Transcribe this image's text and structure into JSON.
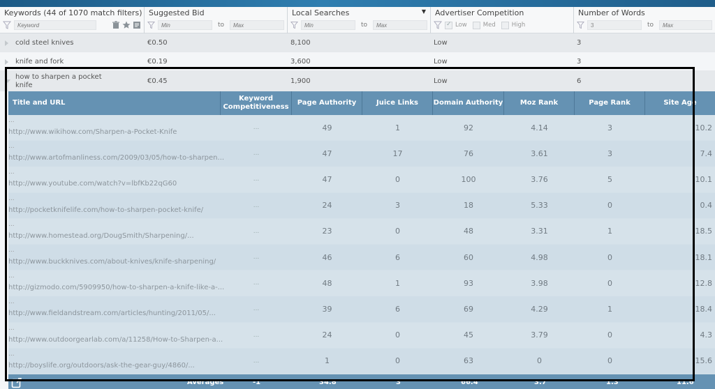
{
  "filters": {
    "keywords": {
      "title": "Keywords (44 of 1070 match filters)",
      "placeholder": "Keyword"
    },
    "suggested_bid": {
      "title": "Suggested Bid",
      "min_placeholder": "Min",
      "to": "to",
      "max_placeholder": "Max"
    },
    "local_searches": {
      "title": "Local Searches",
      "min_placeholder": "Min",
      "to": "to",
      "max_placeholder": "Max",
      "sort": "▼"
    },
    "advertiser_competition": {
      "title": "Advertiser Competition",
      "options": [
        {
          "label": "Low",
          "checked": true
        },
        {
          "label": "Med",
          "checked": false
        },
        {
          "label": "High",
          "checked": false
        }
      ]
    },
    "number_of_words": {
      "title": "Number of Words",
      "min_value": "3",
      "to": "to",
      "max_placeholder": "Max"
    }
  },
  "keywords": [
    {
      "keyword": "cold steel knives",
      "bid": "€0.50",
      "searches": "8,100",
      "competition": "Low",
      "words": "3",
      "expanded": false
    },
    {
      "keyword": "knife and fork",
      "bid": "€0.19",
      "searches": "3,600",
      "competition": "Low",
      "words": "3",
      "expanded": false
    },
    {
      "keyword": "how to sharpen a pocket knife",
      "bid": "€0.45",
      "searches": "1,900",
      "competition": "Low",
      "words": "6",
      "expanded": true
    }
  ],
  "detail": {
    "headers": [
      "Title and URL",
      "Keyword Competitiveness",
      "Page Authority",
      "Juice Links",
      "Domain Authority",
      "Moz Rank",
      "Page Rank",
      "Site Age"
    ],
    "rows": [
      {
        "title": "...",
        "url": "http://www.wikihow.com/Sharpen-a-Pocket-Knife",
        "kc": "...",
        "pa": "49",
        "jl": "1",
        "da": "92",
        "mr": "4.14",
        "pr": "3",
        "age": "10.2"
      },
      {
        "title": "...",
        "url": "http://www.artofmanliness.com/2009/03/05/how-to-sharpen...",
        "kc": "...",
        "pa": "47",
        "jl": "17",
        "da": "76",
        "mr": "3.61",
        "pr": "3",
        "age": "7.4"
      },
      {
        "title": "...",
        "url": "http://www.youtube.com/watch?v=lbfKb22qG60",
        "kc": "...",
        "pa": "47",
        "jl": "0",
        "da": "100",
        "mr": "3.76",
        "pr": "5",
        "age": "10.1"
      },
      {
        "title": "...",
        "url": "http://pocketknifelife.com/how-to-sharpen-pocket-knife/",
        "kc": "...",
        "pa": "24",
        "jl": "3",
        "da": "18",
        "mr": "5.33",
        "pr": "0",
        "age": "0.4"
      },
      {
        "title": "...",
        "url": "http://www.homestead.org/DougSmith/Sharpening/...",
        "kc": "...",
        "pa": "23",
        "jl": "0",
        "da": "48",
        "mr": "3.31",
        "pr": "1",
        "age": "18.5"
      },
      {
        "title": "...",
        "url": "http://www.buckknives.com/about-knives/knife-sharpening/",
        "kc": "...",
        "pa": "46",
        "jl": "6",
        "da": "60",
        "mr": "4.98",
        "pr": "0",
        "age": "18.1"
      },
      {
        "title": "...",
        "url": "http://gizmodo.com/5909950/how-to-sharpen-a-knife-like-a-...",
        "kc": "...",
        "pa": "48",
        "jl": "1",
        "da": "93",
        "mr": "3.98",
        "pr": "0",
        "age": "12.8"
      },
      {
        "title": "...",
        "url": "http://www.fieldandstream.com/articles/hunting/2011/05/...",
        "kc": "...",
        "pa": "39",
        "jl": "6",
        "da": "69",
        "mr": "4.29",
        "pr": "1",
        "age": "18.4"
      },
      {
        "title": "...",
        "url": "http://www.outdoorgearlab.com/a/11258/How-to-Sharpen-a...",
        "kc": "...",
        "pa": "24",
        "jl": "0",
        "da": "45",
        "mr": "3.79",
        "pr": "0",
        "age": "4.3"
      },
      {
        "title": "...",
        "url": "http://boyslife.org/outdoors/ask-the-gear-guy/4860/...",
        "kc": "...",
        "pa": "1",
        "jl": "0",
        "da": "63",
        "mr": "0",
        "pr": "0",
        "age": "15.6"
      }
    ],
    "footer": {
      "label": "Averages",
      "kc": "-1",
      "pa": "34.8",
      "jl": "3",
      "da": "66.4",
      "mr": "3.7",
      "pr": "1.3",
      "age": "11.6"
    }
  },
  "colors": {
    "header_blue": "#6592b3",
    "row_blue": "#d3e0e9",
    "top_bar": "#2f7eb0"
  }
}
